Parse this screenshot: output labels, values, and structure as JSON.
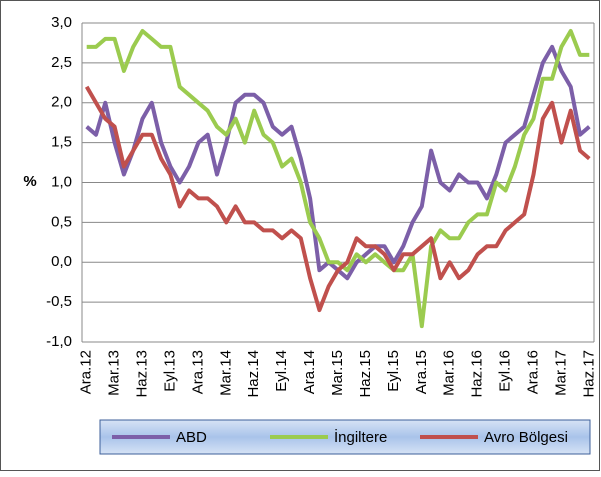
{
  "chart_data": {
    "type": "line",
    "ylabel": "%",
    "categories": [
      "Ara.12",
      null,
      null,
      "Mar.13",
      null,
      null,
      "Haz.13",
      null,
      null,
      "Eyl.13",
      null,
      null,
      "Ara.13",
      null,
      null,
      "Mar.14",
      null,
      null,
      "Haz.14",
      null,
      null,
      "Eyl.14",
      null,
      null,
      "Ara.14",
      null,
      null,
      "Mar.15",
      null,
      null,
      "Haz.15",
      null,
      null,
      "Eyl.15",
      null,
      null,
      "Ara.15",
      null,
      null,
      "Mar.16",
      null,
      null,
      "Haz.16",
      null,
      null,
      "Eyl.16",
      null,
      null,
      "Ara.16",
      null,
      null,
      "Mar.17",
      null,
      null,
      "Haz.17"
    ],
    "series": [
      {
        "name": "ABD",
        "color": "#7c5fa8",
        "values": [
          1.7,
          1.6,
          2.0,
          1.5,
          1.1,
          1.4,
          1.8,
          2.0,
          1.5,
          1.2,
          1.0,
          1.2,
          1.5,
          1.6,
          1.1,
          1.5,
          2.0,
          2.1,
          2.1,
          2.0,
          1.7,
          1.6,
          1.7,
          1.3,
          0.8,
          -0.1,
          0.0,
          -0.1,
          -0.2,
          0.0,
          0.1,
          0.2,
          0.2,
          0.0,
          0.2,
          0.5,
          0.7,
          1.4,
          1.0,
          0.9,
          1.1,
          1.0,
          1.0,
          0.8,
          1.1,
          1.5,
          1.6,
          1.7,
          2.1,
          2.5,
          2.7,
          2.4,
          2.2,
          1.6,
          1.7
        ]
      },
      {
        "name": "İngiltere",
        "color": "#9bcb4f",
        "values": [
          2.7,
          2.7,
          2.8,
          2.8,
          2.4,
          2.7,
          2.9,
          2.8,
          2.7,
          2.7,
          2.2,
          2.1,
          2.0,
          1.9,
          1.7,
          1.6,
          1.8,
          1.5,
          1.9,
          1.6,
          1.5,
          1.2,
          1.3,
          1.0,
          0.5,
          0.3,
          0.0,
          0.0,
          -0.1,
          0.1,
          0.0,
          0.1,
          0.0,
          -0.1,
          -0.1,
          0.1,
          -0.8,
          0.2,
          0.4,
          0.3,
          0.3,
          0.5,
          0.6,
          0.6,
          1.0,
          0.9,
          1.2,
          1.6,
          1.8,
          2.3,
          2.3,
          2.7,
          2.9,
          2.6,
          2.6
        ]
      },
      {
        "name": "Avro Bölgesi",
        "color": "#c0504d",
        "values": [
          2.2,
          2.0,
          1.8,
          1.7,
          1.2,
          1.4,
          1.6,
          1.6,
          1.3,
          1.1,
          0.7,
          0.9,
          0.8,
          0.8,
          0.7,
          0.5,
          0.7,
          0.5,
          0.5,
          0.4,
          0.4,
          0.3,
          0.4,
          0.3,
          -0.2,
          -0.6,
          -0.3,
          -0.1,
          0.0,
          0.3,
          0.2,
          0.2,
          0.1,
          -0.1,
          0.1,
          0.1,
          0.2,
          0.3,
          -0.2,
          0.0,
          -0.2,
          -0.1,
          0.1,
          0.2,
          0.2,
          0.4,
          0.5,
          0.6,
          1.1,
          1.8,
          2.0,
          1.5,
          1.9,
          1.4,
          1.3
        ]
      }
    ],
    "ylim": [
      -1.0,
      3.0
    ],
    "yticks": [
      {
        "value": -1.0,
        "label": "-1,0"
      },
      {
        "value": -0.5,
        "label": "-0,5"
      },
      {
        "value": 0,
        "label": "0,0"
      },
      {
        "value": 0.5,
        "label": "0,5"
      },
      {
        "value": 1.0,
        "label": "1,0"
      },
      {
        "value": 1.5,
        "label": "1,5"
      },
      {
        "value": 2.0,
        "label": "2,0"
      },
      {
        "value": 2.5,
        "label": "2,5"
      },
      {
        "value": 3.0,
        "label": "3,0"
      }
    ],
    "grid": true,
    "legend": "bottom"
  }
}
